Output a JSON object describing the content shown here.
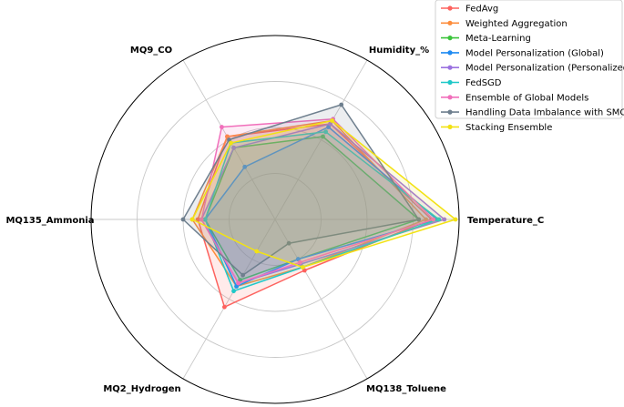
{
  "chart_data": {
    "type": "radar",
    "title": "",
    "axes": [
      "Temperature_C",
      "Humidity_%",
      "MQ9_CO",
      "MQ135_Ammonia",
      "MQ2_Hydrogen",
      "MQ138_Toluene"
    ],
    "rmax": 1.0,
    "grid": true,
    "legend_position": "top-right",
    "series": [
      {
        "name": "FedAvg",
        "color": "#fd625e",
        "values": [
          0.85,
          0.6,
          0.52,
          0.42,
          0.55,
          0.32
        ]
      },
      {
        "name": "Weighted Aggregation",
        "color": "#fd8d3c",
        "values": [
          0.82,
          0.62,
          0.52,
          0.45,
          0.42,
          0.3
        ]
      },
      {
        "name": "Meta-Learning",
        "color": "#3cc43c",
        "values": [
          0.78,
          0.52,
          0.45,
          0.38,
          0.38,
          0.25
        ]
      },
      {
        "name": "Model Personalization (Global)",
        "color": "#1f8bf2",
        "values": [
          0.88,
          0.58,
          0.33,
          0.38,
          0.42,
          0.25
        ]
      },
      {
        "name": "Model Personalization (Personalized)",
        "color": "#9b72e0",
        "values": [
          0.92,
          0.6,
          0.45,
          0.4,
          0.4,
          0.28
        ]
      },
      {
        "name": "FedSGD",
        "color": "#1fc8c8",
        "values": [
          0.89,
          0.55,
          0.48,
          0.38,
          0.45,
          0.3
        ]
      },
      {
        "name": "Ensemble of Global Models",
        "color": "#f16fbb",
        "values": [
          0.86,
          0.63,
          0.58,
          0.4,
          0.4,
          0.27
        ]
      },
      {
        "name": "Handling Data Imbalance with SMOTE",
        "color": "#6e7f8e",
        "values": [
          0.78,
          0.72,
          0.5,
          0.5,
          0.35,
          0.15
        ]
      },
      {
        "name": "Stacking Ensemble",
        "color": "#f2e214",
        "values": [
          0.98,
          0.62,
          0.48,
          0.45,
          0.2,
          0.3
        ]
      }
    ]
  }
}
